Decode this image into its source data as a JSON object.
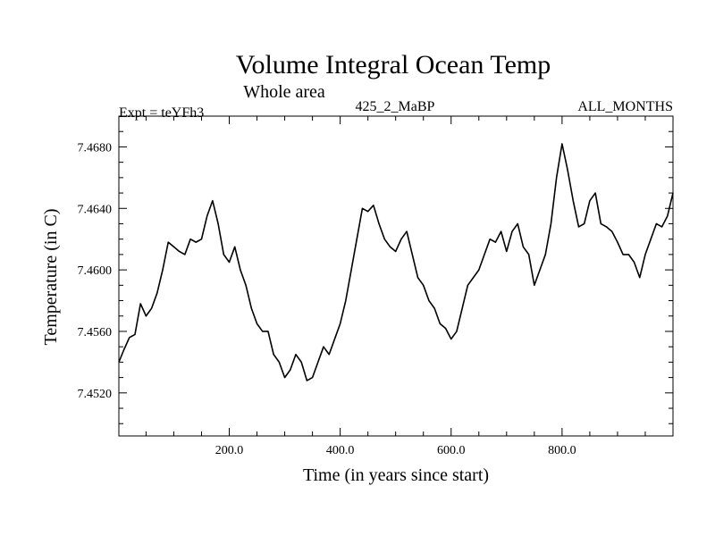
{
  "chart_data": {
    "type": "line",
    "title": "Volume Integral Ocean Temp",
    "subtitle": "Whole area",
    "experiment_label": "Expt = teYFh3",
    "run_label": "425_2_MaBP",
    "months_label": "ALL_MONTHS",
    "xlabel": "Time (in years since start)",
    "ylabel": "Temperature (in C)",
    "xlim": [
      1,
      1000
    ],
    "ylim": [
      7.4492,
      7.47
    ],
    "x_ticks": [
      200,
      400,
      600,
      800
    ],
    "x_tick_labels": [
      "200.0",
      "400.0",
      "600.0",
      "800.0"
    ],
    "y_ticks": [
      7.452,
      7.456,
      7.46,
      7.464,
      7.468
    ],
    "y_tick_labels": [
      "7.4520",
      "7.4560",
      "7.4600",
      "7.4640",
      "7.4680"
    ],
    "grid": false,
    "series": [
      {
        "name": "Volume integral ocean temperature",
        "x": [
          1,
          10,
          20,
          30,
          40,
          50,
          60,
          70,
          80,
          90,
          100,
          110,
          120,
          130,
          140,
          150,
          160,
          170,
          180,
          190,
          200,
          210,
          220,
          230,
          240,
          250,
          260,
          270,
          280,
          290,
          300,
          310,
          320,
          330,
          340,
          350,
          360,
          370,
          380,
          390,
          400,
          410,
          420,
          430,
          440,
          450,
          460,
          470,
          480,
          490,
          500,
          510,
          520,
          530,
          540,
          550,
          560,
          570,
          580,
          590,
          600,
          610,
          620,
          630,
          640,
          650,
          660,
          670,
          680,
          690,
          700,
          710,
          720,
          730,
          740,
          750,
          760,
          770,
          780,
          790,
          800,
          810,
          820,
          830,
          840,
          850,
          860,
          870,
          880,
          890,
          900,
          910,
          920,
          930,
          940,
          950,
          960,
          970,
          980,
          990,
          1000
        ],
        "values": [
          7.454,
          7.4548,
          7.4556,
          7.4558,
          7.4578,
          7.457,
          7.4575,
          7.4585,
          7.46,
          7.4618,
          7.4615,
          7.4612,
          7.461,
          7.462,
          7.4618,
          7.462,
          7.4635,
          7.4645,
          7.463,
          7.461,
          7.4605,
          7.4615,
          7.46,
          7.459,
          7.4575,
          7.4565,
          7.456,
          7.456,
          7.4545,
          7.454,
          7.453,
          7.4535,
          7.4545,
          7.454,
          7.4528,
          7.453,
          7.454,
          7.455,
          7.4545,
          7.4555,
          7.4565,
          7.458,
          7.46,
          7.462,
          7.464,
          7.4638,
          7.4642,
          7.463,
          7.462,
          7.4615,
          7.4612,
          7.462,
          7.4625,
          7.461,
          7.4595,
          7.459,
          7.458,
          7.4575,
          7.4565,
          7.4562,
          7.4555,
          7.456,
          7.4575,
          7.459,
          7.4595,
          7.46,
          7.461,
          7.462,
          7.4618,
          7.4625,
          7.4612,
          7.4625,
          7.463,
          7.4615,
          7.461,
          7.459,
          7.46,
          7.461,
          7.463,
          7.466,
          7.4682,
          7.4665,
          7.4645,
          7.4628,
          7.463,
          7.4645,
          7.465,
          7.463,
          7.4628,
          7.4625,
          7.4618,
          7.461,
          7.461,
          7.4605,
          7.4595,
          7.461,
          7.462,
          7.463,
          7.4628,
          7.4635,
          7.465
        ]
      }
    ]
  }
}
